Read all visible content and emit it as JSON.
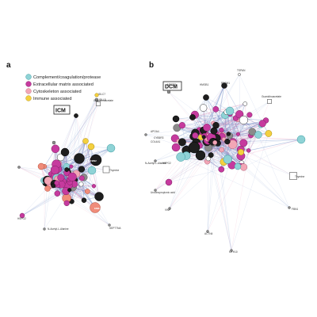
{
  "panels": [
    {
      "letter": "a",
      "condition": "ICM"
    },
    {
      "letter": "b",
      "condition": "DCM"
    }
  ],
  "legend": [
    {
      "label": "Complement/coagulation/protease",
      "color": "#8fd3d6"
    },
    {
      "label": "Extracellular matrix associated",
      "color": "#c63a9e"
    },
    {
      "label": "Cytoskeleton associated",
      "color": "#f2a6b6"
    },
    {
      "label": "Immune associated",
      "color": "#f4d03f"
    }
  ],
  "colors": {
    "edge_blue": "#5b7fc0",
    "edge_pink": "#e06c9f",
    "node_dark": "#1e1e1e",
    "node_gray": "#8a8a8a",
    "node_teal": "#8fd3d6",
    "node_magenta": "#c63a9e",
    "node_pink": "#f2a6b6",
    "node_yellow": "#f4d03f",
    "node_salmon": "#f08c7a"
  },
  "labels_a": {
    "guanidinoacetate": "Guanidinoacetate",
    "idlc7": "IDLC7",
    "idll5": "IDLL5",
    "thymine": "Thymine",
    "hspg2": "HSPG2",
    "nacetyl": "N-Acetyl-L-Alanine",
    "sept": "SEPT7NA",
    "fbn2": "FBN2",
    "emil1": "EMIL1"
  },
  "labels_b": {
    "tspan": "TSPAN",
    "hmgb1": "HMGB1",
    "pfgm1": "PFGM1",
    "guanidinoacetate": "Guanidinoacetate",
    "apoa4": "APOA4",
    "col4a1": "COL4A1",
    "cyb": "CYB5R3",
    "nacetyl": "N-Acetyl-L-Alanine",
    "hspg2": "HSPG2",
    "thymine": "Thymine",
    "uro": "Urodinopropionic acid",
    "vwf": "VWF",
    "fbn1": "FBN1",
    "actn4": "ACTN4",
    "myh10": "MYH10",
    "mfge8": "MFGE8"
  }
}
